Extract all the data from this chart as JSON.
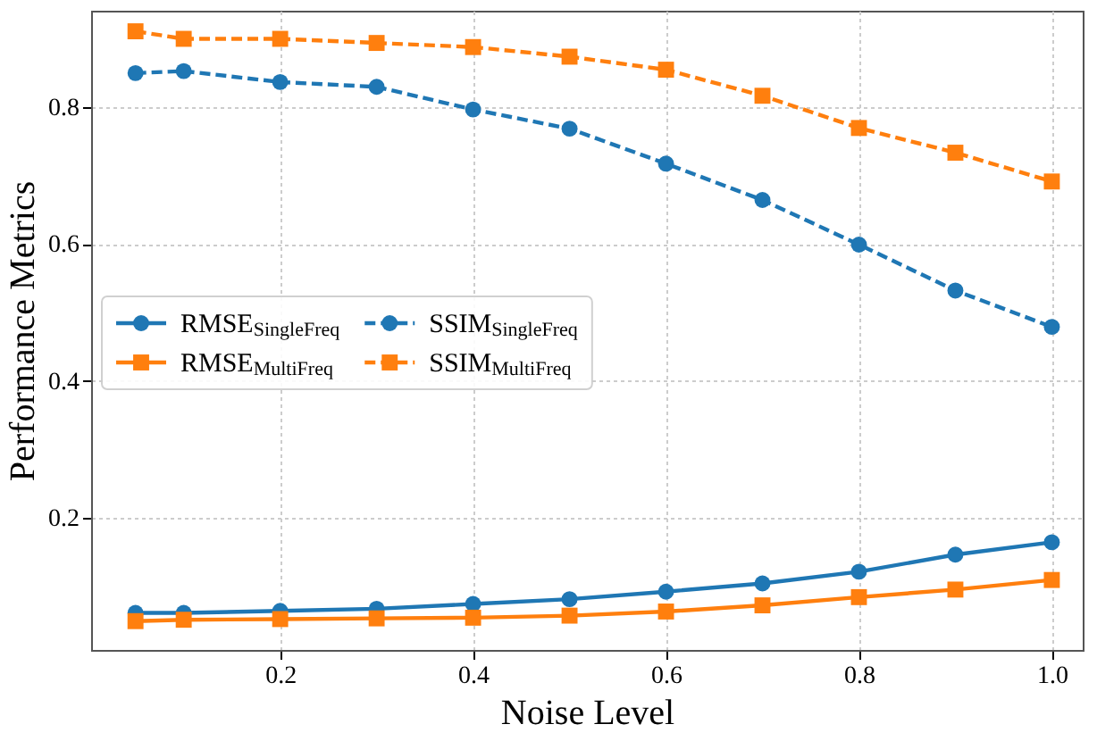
{
  "chart_data": {
    "type": "line",
    "xlabel": "Noise Level",
    "ylabel": "Performance Metrics",
    "x": [
      0.05,
      0.1,
      0.2,
      0.3,
      0.4,
      0.5,
      0.6,
      0.7,
      0.8,
      0.9,
      1.0
    ],
    "xlim": [
      0.004,
      1.032
    ],
    "xticks": [
      0.2,
      0.4,
      0.6,
      0.8,
      {
        "value": 1,
        "label": "1.0"
      }
    ],
    "ylim": [
      0.008,
      0.94
    ],
    "yticks": [
      0.2,
      0.4,
      0.6,
      0.8
    ],
    "grid": true,
    "legend": "left",
    "series": [
      {
        "name": "RMSE$_{SingleFreq}$",
        "color": "#1f77b4",
        "marker": "circle",
        "line_style": "solid",
        "values": [
          0.062,
          0.062,
          0.065,
          0.068,
          0.075,
          0.082,
          0.093,
          0.105,
          0.122,
          0.147,
          0.165
        ]
      },
      {
        "name": "RMSE$_{MultiFreq}$",
        "color": "#ff7f0e",
        "marker": "square",
        "line_style": "solid",
        "values": [
          0.05,
          0.052,
          0.053,
          0.054,
          0.055,
          0.058,
          0.064,
          0.073,
          0.085,
          0.096,
          0.11
        ]
      },
      {
        "name": "SSIM$_{SingleFreq}$",
        "color": "#1f77b4",
        "marker": "circle",
        "line_style": "dashed",
        "values": [
          0.849,
          0.852,
          0.836,
          0.829,
          0.796,
          0.768,
          0.717,
          0.664,
          0.599,
          0.532,
          0.479
        ]
      },
      {
        "name": "SSIM$_{MultiFreq}$",
        "color": "#ff7f0e",
        "marker": "square",
        "line_style": "dashed",
        "values": [
          0.91,
          0.899,
          0.899,
          0.893,
          0.887,
          0.873,
          0.854,
          0.816,
          0.769,
          0.733,
          0.691
        ]
      }
    ]
  }
}
